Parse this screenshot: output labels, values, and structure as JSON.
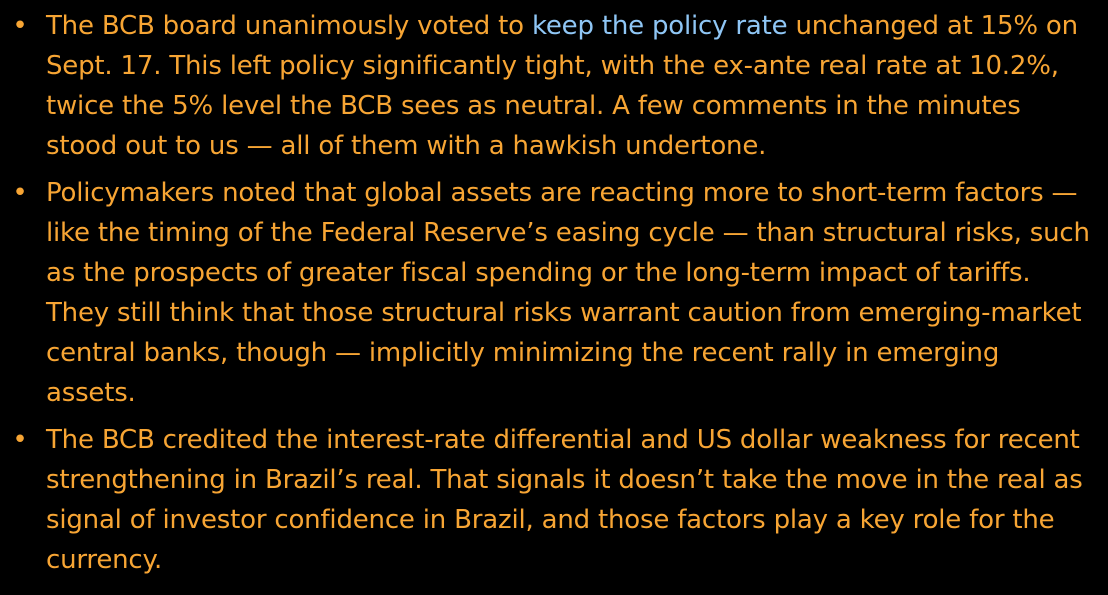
{
  "colors": {
    "background": "#000000",
    "text": "#f7a534",
    "link": "#8fc6f5"
  },
  "bullets": [
    {
      "text_before_link": "The BCB board unanimously voted to ",
      "link_text": "keep the policy rate",
      "text_after_link": " unchanged at 15% on Sept. 17. This left policy significantly tight, with the ex-ante real rate at 10.2%, twice the 5% level the BCB sees as neutral. A few comments in the minutes stood out to us — all of them with a hawkish undertone."
    },
    {
      "text": "Policymakers noted that global assets are reacting more to short-term factors — like the timing of the Federal Reserve’s easing cycle — than structural risks, such as the prospects of greater fiscal spending or the long-term impact of tariffs. They still think that those structural risks warrant caution from emerging-market central banks, though — implicitly minimizing the recent rally in emerging assets."
    },
    {
      "text": "The BCB credited the interest-rate differential and US dollar weakness for recent strengthening in Brazil’s real. That signals it doesn’t take the move in the real as signal of investor confidence in Brazil, and those factors play a key role for the currency."
    }
  ],
  "bullet_glyph": "•"
}
